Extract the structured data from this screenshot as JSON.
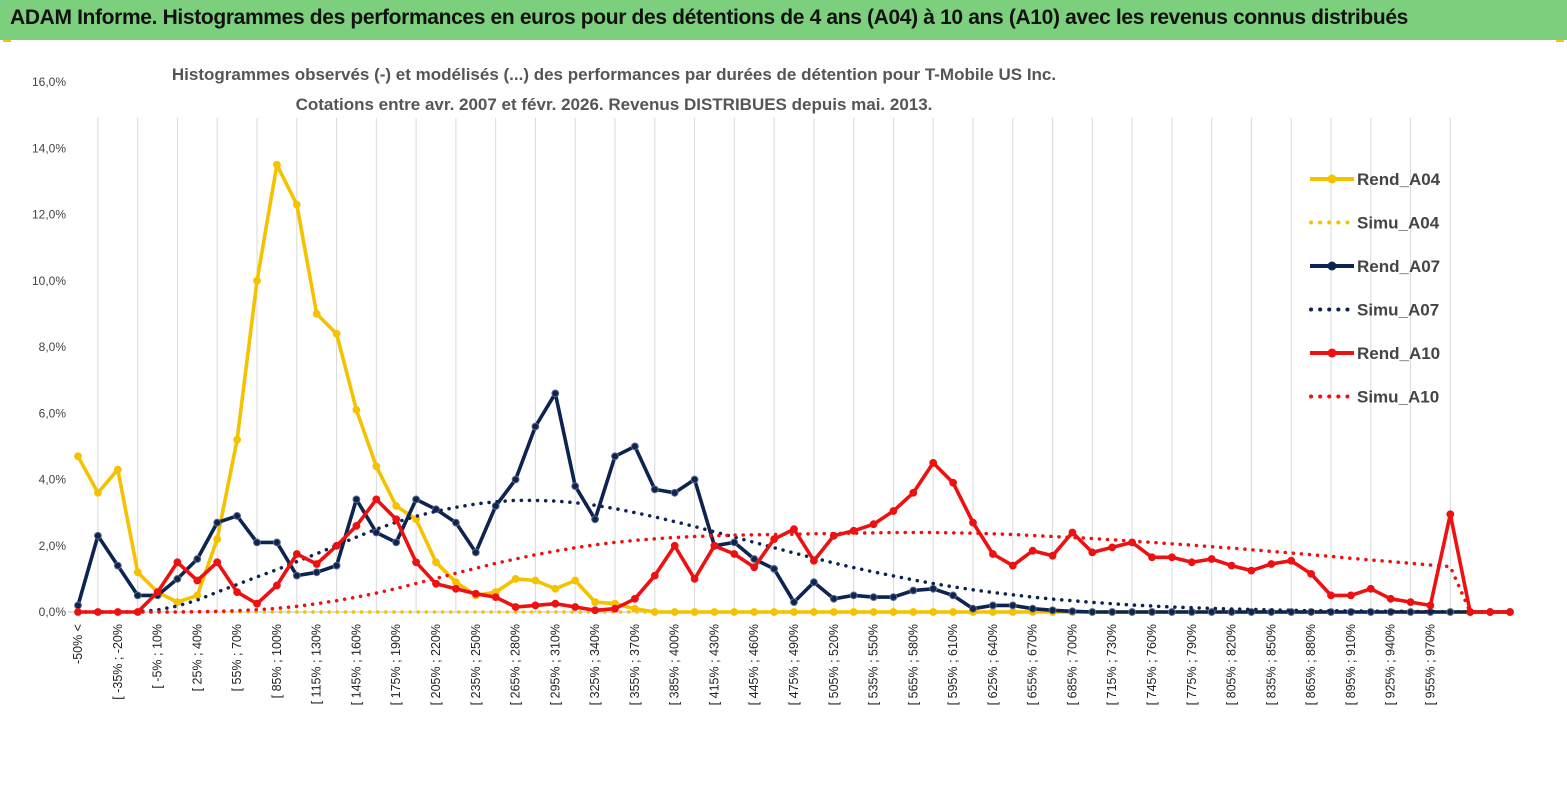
{
  "banner": {
    "title": "ADAM Informe. Histogrammes des performances en euros pour des détentions de 4 ans (A04) à 10 ans (A10) avec les revenus connus distribués"
  },
  "colors": {
    "A04": "#f5c200",
    "A07": "#0d2451",
    "A10": "#ee1111",
    "banner": "#7ccf7c"
  },
  "chart_data": {
    "type": "line",
    "title": "Histogrammes observés (-) et modélisés (...) des performances par durées de détention pour T-Mobile US Inc.",
    "subtitle": "Cotations entre avr. 2007 et févr. 2026. Revenus DISTRIBUES depuis mai. 2013.",
    "xlabel": "",
    "ylabel": "",
    "ylim": [
      0,
      16
    ],
    "y_ticks": [
      "0,0%",
      "2,0%",
      "4,0%",
      "6,0%",
      "8,0%",
      "10,0%",
      "12,0%",
      "14,0%",
      "16,0%"
    ],
    "x_tick_labels": [
      "-50% <",
      "[ -35% ; -20%",
      "[ -5% ; 10%",
      "[ 25% ; 40%",
      "[ 55% ; 70%",
      "[ 85% ; 100%",
      "[ 115% ; 130%",
      "[ 145% ; 160%",
      "[ 175% ; 190%",
      "[ 205% ; 220%",
      "[ 235% ; 250%",
      "[ 265% ; 280%",
      "[ 295% ; 310%",
      "[ 325% ; 340%",
      "[ 355% ; 370%",
      "[ 385% ; 400%",
      "[ 415% ; 430%",
      "[ 445% ; 460%",
      "[ 475% ; 490%",
      "[ 505% ; 520%",
      "[ 535% ; 550%",
      "[ 565% ; 580%",
      "[ 595% ; 610%",
      "[ 625% ; 640%",
      "[ 655% ; 670%",
      "[ 685% ; 700%",
      "[ 715% ; 730%",
      "[ 745% ; 760%",
      "[ 775% ; 790%",
      "[ 805% ; 820%",
      "[ 835% ; 850%",
      "[ 865% ; 880%",
      "[ 895% ; 910%",
      "[ 925% ; 940%",
      "[ 955% ; 970%"
    ],
    "categories_count": 73,
    "label_every": 2,
    "legend_position": "right",
    "series": [
      {
        "name": "Rend_A04",
        "style": "solid",
        "color": "#f5c200",
        "values": [
          4.7,
          3.6,
          4.3,
          1.2,
          0.6,
          0.3,
          0.5,
          2.2,
          5.2,
          10.0,
          13.5,
          12.3,
          9.0,
          8.4,
          6.1,
          4.4,
          3.2,
          2.8,
          1.5,
          0.9,
          0.5,
          0.6,
          1.0,
          0.95,
          0.7,
          0.95,
          0.3,
          0.25,
          0.1,
          0,
          0,
          0,
          0,
          0,
          0,
          0,
          0,
          0,
          0,
          0,
          0,
          0,
          0,
          0,
          0,
          0,
          0,
          0,
          0,
          0,
          0,
          0,
          0,
          0,
          0,
          0,
          0,
          0,
          0,
          0,
          0,
          0,
          0,
          0,
          0,
          0,
          0,
          0,
          0,
          0,
          0,
          0,
          0
        ]
      },
      {
        "name": "Simu_A04",
        "style": "dotted",
        "color": "#f5c200",
        "values": [
          0,
          0,
          0,
          0,
          0,
          0,
          0,
          0,
          0,
          0,
          0,
          0,
          0,
          0,
          0,
          0,
          0,
          0,
          0,
          0,
          0,
          0,
          0,
          0,
          0,
          0,
          0,
          0,
          0,
          0,
          0,
          0,
          0,
          0,
          0,
          0,
          0,
          0,
          0,
          0,
          0,
          0,
          0,
          0,
          0,
          0,
          0,
          0,
          0,
          0,
          0,
          0,
          0,
          0,
          0,
          0,
          0,
          0,
          0,
          0,
          0,
          0,
          0,
          0,
          0,
          0,
          0,
          0,
          0,
          0,
          0,
          0,
          0
        ]
      },
      {
        "name": "Rend_A07",
        "style": "solid",
        "color": "#0d2451",
        "values": [
          0.2,
          2.3,
          1.4,
          0.5,
          0.5,
          1.0,
          1.6,
          2.7,
          2.9,
          2.1,
          2.1,
          1.1,
          1.2,
          1.4,
          3.4,
          2.4,
          2.1,
          3.4,
          3.1,
          2.7,
          1.8,
          3.2,
          4.0,
          5.6,
          6.6,
          3.8,
          2.8,
          4.7,
          5.0,
          3.7,
          3.6,
          4.0,
          2.0,
          2.1,
          1.6,
          1.3,
          0.3,
          0.9,
          0.4,
          0.5,
          0.45,
          0.45,
          0.65,
          0.7,
          0.5,
          0.1,
          0.2,
          0.2,
          0.1,
          0.05,
          0.02,
          0,
          0,
          0,
          0,
          0,
          0,
          0,
          0,
          0,
          0,
          0,
          0,
          0,
          0,
          0,
          0,
          0,
          0,
          0,
          0,
          0,
          0
        ]
      },
      {
        "name": "Simu_A07",
        "style": "dotted",
        "color": "#0d2451",
        "values": [
          0,
          0,
          0,
          0.01,
          0.06,
          0.18,
          0.36,
          0.6,
          0.83,
          1.06,
          1.28,
          1.52,
          1.76,
          2.01,
          2.26,
          2.5,
          2.71,
          2.89,
          3.04,
          3.16,
          3.26,
          3.33,
          3.37,
          3.37,
          3.35,
          3.3,
          3.22,
          3.12,
          3.0,
          2.87,
          2.73,
          2.58,
          2.42,
          2.26,
          2.1,
          1.94,
          1.78,
          1.63,
          1.48,
          1.34,
          1.21,
          1.09,
          0.97,
          0.86,
          0.76,
          0.67,
          0.59,
          0.52,
          0.45,
          0.39,
          0.34,
          0.29,
          0.25,
          0.21,
          0.18,
          0.15,
          0.13,
          0.11,
          0.09,
          0.08,
          0.06,
          0.05,
          0.04,
          0.04,
          0.03,
          0.03,
          0.02,
          0.02,
          0.01,
          0.01,
          0.01,
          0.01,
          0.01
        ]
      },
      {
        "name": "Rend_A10",
        "style": "solid",
        "color": "#ee1111",
        "values": [
          0,
          0,
          0,
          0,
          0.6,
          1.5,
          0.95,
          1.5,
          0.6,
          0.25,
          0.8,
          1.75,
          1.45,
          2.0,
          2.6,
          3.4,
          2.8,
          1.5,
          0.85,
          0.7,
          0.55,
          0.45,
          0.15,
          0.2,
          0.25,
          0.15,
          0.05,
          0.1,
          0.4,
          1.1,
          2.0,
          1.0,
          2.0,
          1.75,
          1.35,
          2.2,
          2.5,
          1.55,
          2.3,
          2.45,
          2.65,
          3.05,
          3.6,
          4.5,
          3.9,
          2.7,
          1.75,
          1.4,
          1.85,
          1.7,
          2.4,
          1.8,
          1.95,
          2.1,
          1.65,
          1.65,
          1.5,
          1.6,
          1.4,
          1.25,
          1.45,
          1.55,
          1.15,
          0.5,
          0.5,
          0.7,
          0.4,
          0.3,
          0.2,
          2.95,
          0,
          0,
          0
        ]
      },
      {
        "name": "Simu_A10",
        "style": "dotted",
        "color": "#ee1111",
        "values": [
          0,
          0,
          0,
          0,
          0,
          0,
          0.01,
          0.02,
          0.04,
          0.07,
          0.11,
          0.17,
          0.25,
          0.34,
          0.45,
          0.57,
          0.71,
          0.86,
          1.01,
          1.17,
          1.32,
          1.47,
          1.6,
          1.73,
          1.84,
          1.94,
          2.03,
          2.1,
          2.16,
          2.21,
          2.25,
          2.28,
          2.3,
          2.32,
          2.33,
          2.34,
          2.35,
          2.36,
          2.37,
          2.38,
          2.39,
          2.4,
          2.4,
          2.4,
          2.39,
          2.38,
          2.36,
          2.34,
          2.31,
          2.28,
          2.25,
          2.22,
          2.18,
          2.14,
          2.1,
          2.06,
          2.02,
          1.97,
          1.93,
          1.88,
          1.83,
          1.78,
          1.73,
          1.68,
          1.62,
          1.57,
          1.52,
          1.47,
          1.42,
          1.37,
          0,
          0,
          0
        ]
      }
    ]
  }
}
